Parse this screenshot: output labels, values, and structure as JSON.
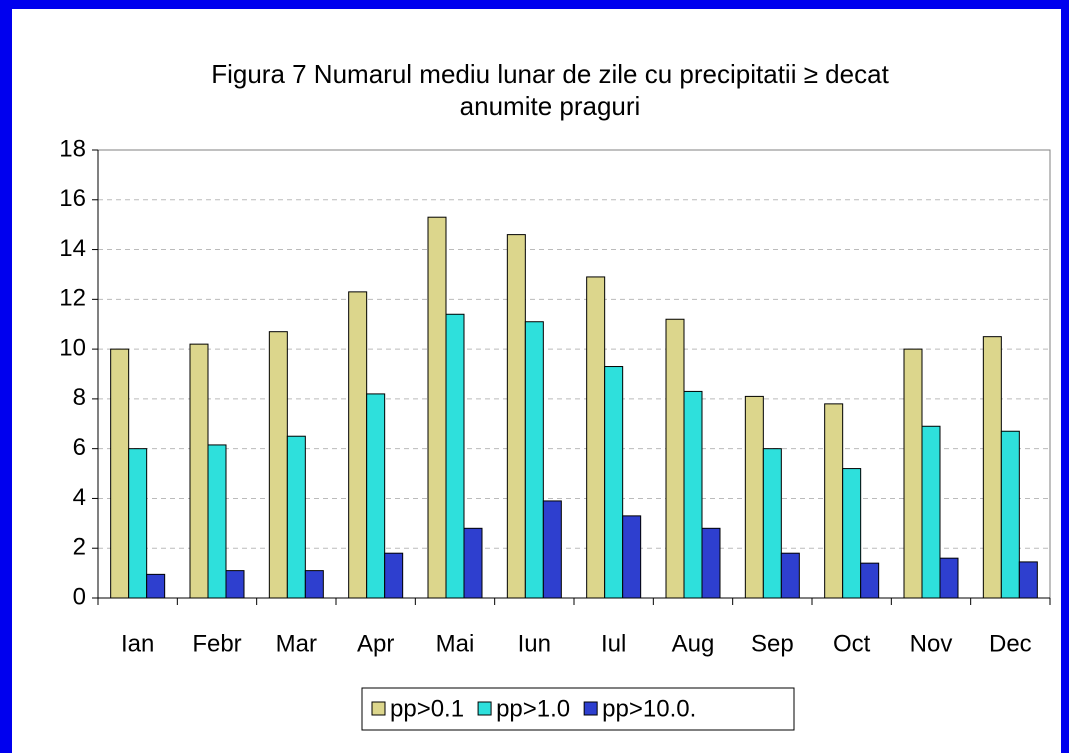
{
  "chart_data": {
    "type": "bar",
    "title": [
      "Figura 7 Numarul mediu  lunar de zile cu precipitatii ≥ decat",
      "anumite praguri"
    ],
    "categories": [
      "Ian",
      "Febr",
      "Mar",
      "Apr",
      "Mai",
      "Iun",
      "Iul",
      "Aug",
      "Sep",
      "Oct",
      "Nov",
      "Dec"
    ],
    "series": [
      {
        "name": "pp>0.1",
        "color": "#dcd68c",
        "values": [
          10.0,
          10.2,
          10.7,
          12.3,
          15.3,
          14.6,
          12.9,
          11.2,
          8.1,
          7.8,
          10.0,
          10.5
        ]
      },
      {
        "name": "pp>1.0",
        "color": "#2ee0dc",
        "values": [
          6.0,
          6.15,
          6.5,
          8.2,
          11.4,
          11.1,
          9.3,
          8.3,
          6.0,
          5.2,
          6.9,
          6.7
        ]
      },
      {
        "name": "pp>10.0.",
        "color": "#2e3fcf",
        "values": [
          0.95,
          1.1,
          1.1,
          1.8,
          2.8,
          3.9,
          3.3,
          2.8,
          1.8,
          1.4,
          1.6,
          1.45
        ]
      }
    ],
    "ylim": [
      0,
      18
    ],
    "yticks": [
      0,
      2,
      4,
      6,
      8,
      10,
      12,
      14,
      16,
      18
    ],
    "grid": true,
    "legend": "bottom"
  }
}
